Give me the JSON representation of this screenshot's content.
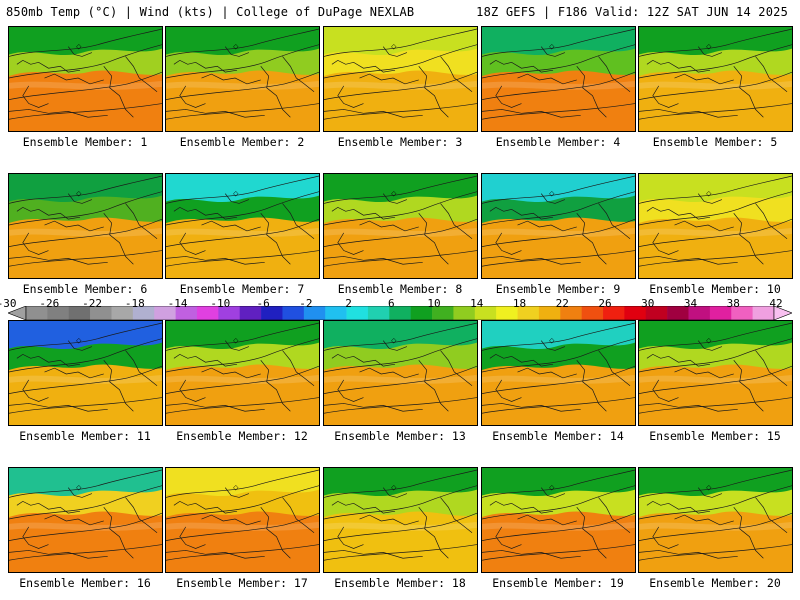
{
  "header": {
    "title_left": "850mb Temp (°C) | Wind (kts) | College of DuPage NEXLAB",
    "title_right": "18Z GEFS | F186 Valid: 12Z SAT JUN 14 2025"
  },
  "panels": [
    {
      "label": "Ensemble Member: 1",
      "style": {
        "north": "#10a020",
        "mid": "#a0d020",
        "south": "#f08010"
      }
    },
    {
      "label": "Ensemble Member: 2",
      "style": {
        "north": "#10a020",
        "mid": "#90cc20",
        "south": "#f0a010"
      }
    },
    {
      "label": "Ensemble Member: 3",
      "style": {
        "north": "#c8e020",
        "mid": "#f0e020",
        "south": "#f0b010"
      }
    },
    {
      "label": "Ensemble Member: 4",
      "style": {
        "north": "#10b060",
        "mid": "#60c020",
        "south": "#f08010"
      }
    },
    {
      "label": "Ensemble Member: 5",
      "style": {
        "north": "#10a020",
        "mid": "#b0d820",
        "south": "#f0b010"
      }
    },
    {
      "label": "Ensemble Member: 6",
      "style": {
        "north": "#10a040",
        "mid": "#50b020",
        "south": "#f0a010"
      }
    },
    {
      "label": "Ensemble Member: 7",
      "style": {
        "north": "#20d8d0",
        "mid": "#10a020",
        "south": "#f0b010"
      }
    },
    {
      "label": "Ensemble Member: 8",
      "style": {
        "north": "#10a020",
        "mid": "#b0d820",
        "south": "#f0a010"
      }
    },
    {
      "label": "Ensemble Member: 9",
      "style": {
        "north": "#20d0d0",
        "mid": "#10a040",
        "south": "#f0a010"
      }
    },
    {
      "label": "Ensemble Member: 10",
      "style": {
        "north": "#c8e020",
        "mid": "#f0e020",
        "south": "#f0b010"
      }
    },
    {
      "label": "Ensemble Member: 11",
      "style": {
        "north": "#2060e0",
        "mid": "#10a020",
        "south": "#f0b010"
      }
    },
    {
      "label": "Ensemble Member: 12",
      "style": {
        "north": "#10a020",
        "mid": "#b0d820",
        "south": "#f0a010"
      }
    },
    {
      "label": "Ensemble Member: 13",
      "style": {
        "north": "#10b060",
        "mid": "#90cc20",
        "south": "#f0a010"
      }
    },
    {
      "label": "Ensemble Member: 14",
      "style": {
        "north": "#20d0c0",
        "mid": "#10a020",
        "south": "#f0a010"
      }
    },
    {
      "label": "Ensemble Member: 15",
      "style": {
        "north": "#10a020",
        "mid": "#b0d820",
        "south": "#f0a010"
      }
    },
    {
      "label": "Ensemble Member: 16",
      "style": {
        "north": "#20c090",
        "mid": "#f0d020",
        "south": "#f08010"
      }
    },
    {
      "label": "Ensemble Member: 17",
      "style": {
        "north": "#f0e020",
        "mid": "#f0c010",
        "south": "#f08010"
      }
    },
    {
      "label": "Ensemble Member: 18",
      "style": {
        "north": "#10a020",
        "mid": "#b0d820",
        "south": "#f0c010"
      }
    },
    {
      "label": "Ensemble Member: 19",
      "style": {
        "north": "#10a020",
        "mid": "#c8e020",
        "south": "#f08010"
      }
    },
    {
      "label": "Ensemble Member: 20",
      "style": {
        "north": "#10a020",
        "mid": "#c8e020",
        "south": "#f0a010"
      }
    }
  ],
  "colorbar": {
    "labels": [
      "-30",
      "-26",
      "-22",
      "-18",
      "-14",
      "-10",
      "-6",
      "-2",
      "2",
      "6",
      "10",
      "14",
      "18",
      "22",
      "26",
      "30",
      "34",
      "38",
      "42"
    ],
    "colors": [
      "#909090",
      "#808080",
      "#707070",
      "#909090",
      "#a8a8a8",
      "#b0b0d0",
      "#d0a0e0",
      "#c060e0",
      "#e040e0",
      "#a040e0",
      "#6020c0",
      "#2020c0",
      "#2050e0",
      "#2090f0",
      "#20c0f0",
      "#20e0e0",
      "#20d0b0",
      "#10b060",
      "#10a020",
      "#40b020",
      "#90cc20",
      "#c8e020",
      "#f0f020",
      "#f0d020",
      "#f0b010",
      "#f08010",
      "#f05010",
      "#f02010",
      "#e00010",
      "#c00020",
      "#a00040",
      "#c01080",
      "#e020a0",
      "#f060c0",
      "#f0a0e0"
    ]
  }
}
